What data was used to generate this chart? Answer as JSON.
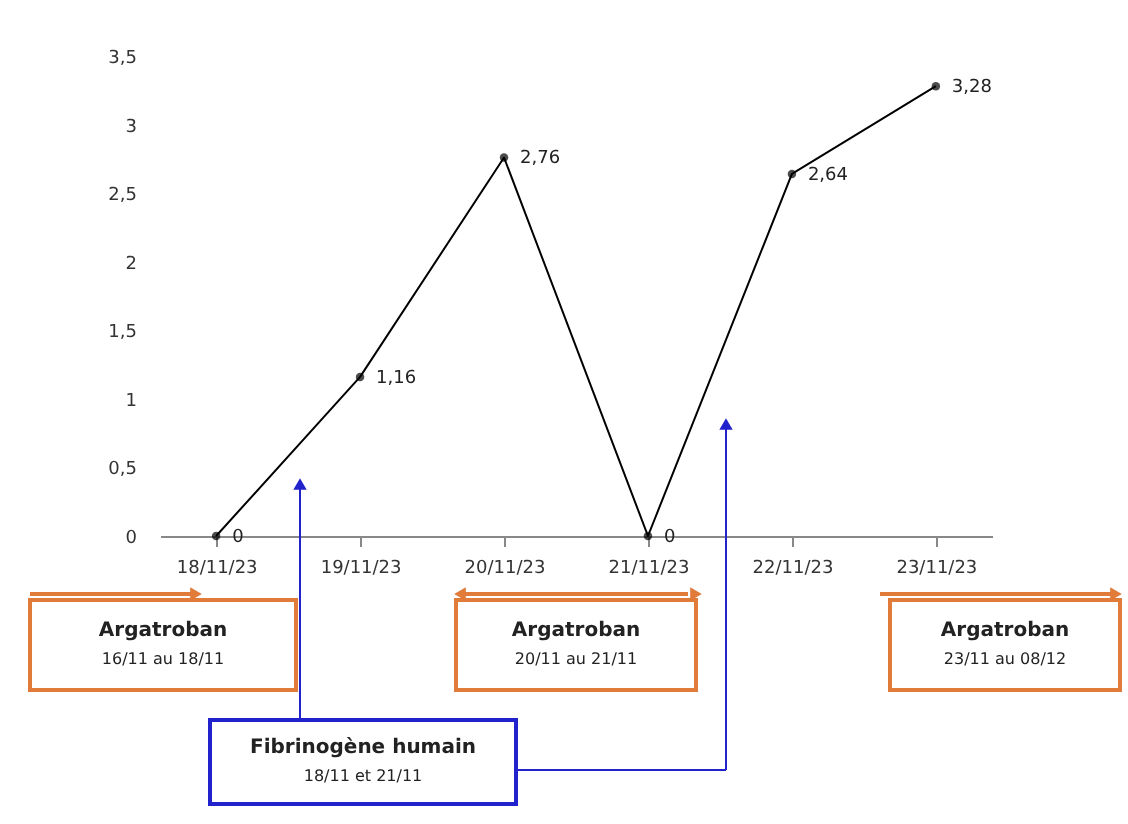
{
  "chart_data": {
    "type": "line",
    "categories": [
      "18/11/23",
      "19/11/23",
      "20/11/23",
      "21/11/23",
      "22/11/23",
      "23/11/23"
    ],
    "values": [
      0,
      1.16,
      2.76,
      0,
      2.64,
      3.28
    ],
    "color": "#000000",
    "ylim": [
      0,
      3.5
    ],
    "yticks": [
      {
        "value": 0,
        "label": "0"
      },
      {
        "value": 0.5,
        "label": "0,5"
      },
      {
        "value": 1,
        "label": "1"
      },
      {
        "value": 1.5,
        "label": "1,5"
      },
      {
        "value": 2,
        "label": "2"
      },
      {
        "value": 2.5,
        "label": "2,5"
      },
      {
        "value": 3,
        "label": "3"
      },
      {
        "value": 3.5,
        "label": "3,5"
      }
    ],
    "value_labels": [
      "0",
      "1,16",
      "2,76",
      "0",
      "2,64",
      "3,28"
    ],
    "marker": "circle",
    "line_style": "solid",
    "grid": false,
    "annotations": [
      "Argatroban\n16/11 au 18/11",
      "Argatroban\n20/11 au 21/11",
      "Argatroban\n23/11 au 08/12",
      "Fibrinogène humain\n18/11 et 21/11"
    ]
  }
}
